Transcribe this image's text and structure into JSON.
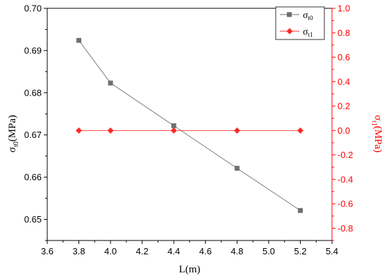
{
  "chart_data": {
    "type": "line",
    "title": "",
    "xlabel": "L(m)",
    "xlim": [
      3.6,
      5.4
    ],
    "x_ticks": [
      3.6,
      3.8,
      4.0,
      4.2,
      4.4,
      4.6,
      4.8,
      5.0,
      5.2,
      5.4
    ],
    "x_tick_labels": [
      "3.6",
      "3.8",
      "4.0",
      "4.2",
      "4.4",
      "4.6",
      "4.8",
      "5.0",
      "5.2",
      "5.4"
    ],
    "y_left": {
      "label_main": "σ",
      "label_sub": "t0",
      "label_unit": "(MPa)",
      "ylim": [
        0.645,
        0.7
      ],
      "ticks": [
        0.65,
        0.66,
        0.67,
        0.68,
        0.69,
        0.7
      ],
      "tick_labels": [
        "0.65",
        "0.66",
        "0.67",
        "0.68",
        "0.69",
        "0.70"
      ],
      "color": "#000000"
    },
    "y_right": {
      "label_main": "σ",
      "label_sub": "t1",
      "label_unit": "(MPa)",
      "ylim": [
        -0.9,
        1.0
      ],
      "ticks": [
        -0.8,
        -0.6,
        -0.4,
        -0.2,
        0.0,
        0.2,
        0.4,
        0.6,
        0.8,
        1.0
      ],
      "tick_labels": [
        "-0.8",
        "-0.6",
        "-0.4",
        "-0.2",
        "0.0",
        "0.2",
        "0.4",
        "0.6",
        "0.8",
        "1.0"
      ],
      "color": "#ff0000"
    },
    "series": [
      {
        "name_main": "σ",
        "name_sub": "t0",
        "axis": "left",
        "marker": "square",
        "color": "#6e6e6e",
        "x": [
          3.8,
          4.0,
          4.4,
          4.8,
          5.2
        ],
        "y": [
          0.6924,
          0.6823,
          0.6722,
          0.6621,
          0.6521
        ]
      },
      {
        "name_main": "σ",
        "name_sub": "t1",
        "axis": "right",
        "marker": "diamond",
        "color": "#ff2a2a",
        "x": [
          3.8,
          4.0,
          4.4,
          4.8,
          5.2
        ],
        "y": [
          0.0,
          0.0,
          0.0,
          0.0,
          0.0
        ]
      }
    ],
    "legend_position": "top-right",
    "grid": false
  }
}
